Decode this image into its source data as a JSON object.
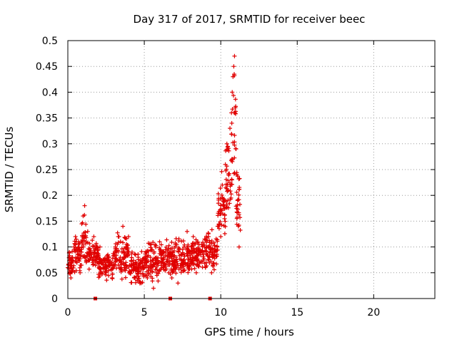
{
  "chart_data": {
    "type": "scatter",
    "title": "Day 317 of 2017, SRMTID for receiver beec",
    "xlabel": "GPS time / hours",
    "ylabel": "SRMTID / TECUs",
    "xlim": [
      0,
      24
    ],
    "ylim": [
      0,
      0.5
    ],
    "xticks": [
      0,
      5,
      10,
      15,
      20
    ],
    "yticks": [
      0,
      0.05,
      0.1,
      0.15,
      0.2,
      0.25,
      0.3,
      0.35,
      0.4,
      0.45,
      0.5
    ],
    "grid": true,
    "marker": "+",
    "color": "#e00000",
    "series": [
      {
        "name": "SRMTID",
        "segments": [
          {
            "x_start": 0.0,
            "x_end": 0.4,
            "y_low": 0.03,
            "y_high": 0.1
          },
          {
            "x_start": 0.4,
            "x_end": 0.9,
            "y_low": 0.04,
            "y_high": 0.13
          },
          {
            "x_start": 0.9,
            "x_end": 1.2,
            "y_low": 0.06,
            "y_high": 0.18
          },
          {
            "x_start": 1.2,
            "x_end": 2.0,
            "y_low": 0.05,
            "y_high": 0.12
          },
          {
            "x_start": 2.0,
            "x_end": 3.0,
            "y_low": 0.03,
            "y_high": 0.1
          },
          {
            "x_start": 3.0,
            "x_end": 4.0,
            "y_low": 0.03,
            "y_high": 0.14
          },
          {
            "x_start": 4.0,
            "x_end": 5.0,
            "y_low": 0.02,
            "y_high": 0.1
          },
          {
            "x_start": 5.0,
            "x_end": 6.0,
            "y_low": 0.02,
            "y_high": 0.12
          },
          {
            "x_start": 6.0,
            "x_end": 7.0,
            "y_low": 0.03,
            "y_high": 0.12
          },
          {
            "x_start": 7.0,
            "x_end": 8.0,
            "y_low": 0.02,
            "y_high": 0.13
          },
          {
            "x_start": 8.0,
            "x_end": 9.0,
            "y_low": 0.04,
            "y_high": 0.13
          },
          {
            "x_start": 9.0,
            "x_end": 9.8,
            "y_low": 0.04,
            "y_high": 0.14
          },
          {
            "x_start": 9.8,
            "x_end": 10.3,
            "y_low": 0.08,
            "y_high": 0.26
          },
          {
            "x_start": 10.3,
            "x_end": 10.7,
            "y_low": 0.12,
            "y_high": 0.35
          },
          {
            "x_start": 10.7,
            "x_end": 11.0,
            "y_low": 0.18,
            "y_high": 0.47
          },
          {
            "x_start": 11.0,
            "x_end": 11.3,
            "y_low": 0.09,
            "y_high": 0.27
          }
        ],
        "points": [
          [
            0.0,
            0.06
          ],
          [
            0.1,
            0.09
          ],
          [
            0.2,
            0.04
          ],
          [
            0.3,
            0.08
          ],
          [
            0.4,
            0.1
          ],
          [
            0.5,
            0.12
          ],
          [
            0.6,
            0.07
          ],
          [
            0.7,
            0.11
          ],
          [
            0.8,
            0.05
          ],
          [
            0.9,
            0.09
          ],
          [
            1.0,
            0.16
          ],
          [
            1.1,
            0.18
          ],
          [
            1.2,
            0.11
          ],
          [
            1.3,
            0.13
          ],
          [
            1.5,
            0.09
          ],
          [
            1.7,
            0.12
          ],
          [
            1.9,
            0.07
          ],
          [
            2.1,
            0.1
          ],
          [
            2.3,
            0.06
          ],
          [
            2.5,
            0.05
          ],
          [
            2.7,
            0.08
          ],
          [
            2.9,
            0.04
          ],
          [
            3.1,
            0.1
          ],
          [
            3.3,
            0.12
          ],
          [
            3.5,
            0.06
          ],
          [
            3.6,
            0.14
          ],
          [
            3.8,
            0.07
          ],
          [
            4.0,
            0.05
          ],
          [
            4.2,
            0.09
          ],
          [
            4.4,
            0.04
          ],
          [
            4.6,
            0.08
          ],
          [
            4.8,
            0.03
          ],
          [
            5.0,
            0.06
          ],
          [
            5.2,
            0.04
          ],
          [
            5.4,
            0.08
          ],
          [
            5.6,
            0.02
          ],
          [
            5.8,
            0.05
          ],
          [
            6.0,
            0.11
          ],
          [
            6.2,
            0.07
          ],
          [
            6.4,
            0.09
          ],
          [
            6.6,
            0.05
          ],
          [
            6.8,
            0.04
          ],
          [
            7.0,
            0.07
          ],
          [
            7.2,
            0.03
          ],
          [
            7.4,
            0.06
          ],
          [
            7.6,
            0.1
          ],
          [
            7.8,
            0.13
          ],
          [
            8.0,
            0.08
          ],
          [
            8.2,
            0.12
          ],
          [
            8.4,
            0.05
          ],
          [
            8.6,
            0.07
          ],
          [
            8.8,
            0.09
          ],
          [
            9.0,
            0.06
          ],
          [
            9.2,
            0.12
          ],
          [
            9.4,
            0.05
          ],
          [
            9.6,
            0.09
          ],
          [
            9.8,
            0.14
          ],
          [
            10.0,
            0.12
          ],
          [
            10.1,
            0.22
          ],
          [
            10.2,
            0.18
          ],
          [
            10.3,
            0.26
          ],
          [
            10.4,
            0.3
          ],
          [
            10.5,
            0.21
          ],
          [
            10.6,
            0.33
          ],
          [
            10.7,
            0.36
          ],
          [
            10.75,
            0.4
          ],
          [
            10.8,
            0.43
          ],
          [
            10.85,
            0.45
          ],
          [
            10.9,
            0.47
          ],
          [
            10.95,
            0.37
          ],
          [
            11.0,
            0.29
          ],
          [
            11.05,
            0.24
          ],
          [
            11.1,
            0.19
          ],
          [
            11.15,
            0.14
          ],
          [
            11.2,
            0.1
          ]
        ]
      }
    ],
    "gap_markers_x": [
      1.8,
      6.7,
      9.3
    ]
  }
}
